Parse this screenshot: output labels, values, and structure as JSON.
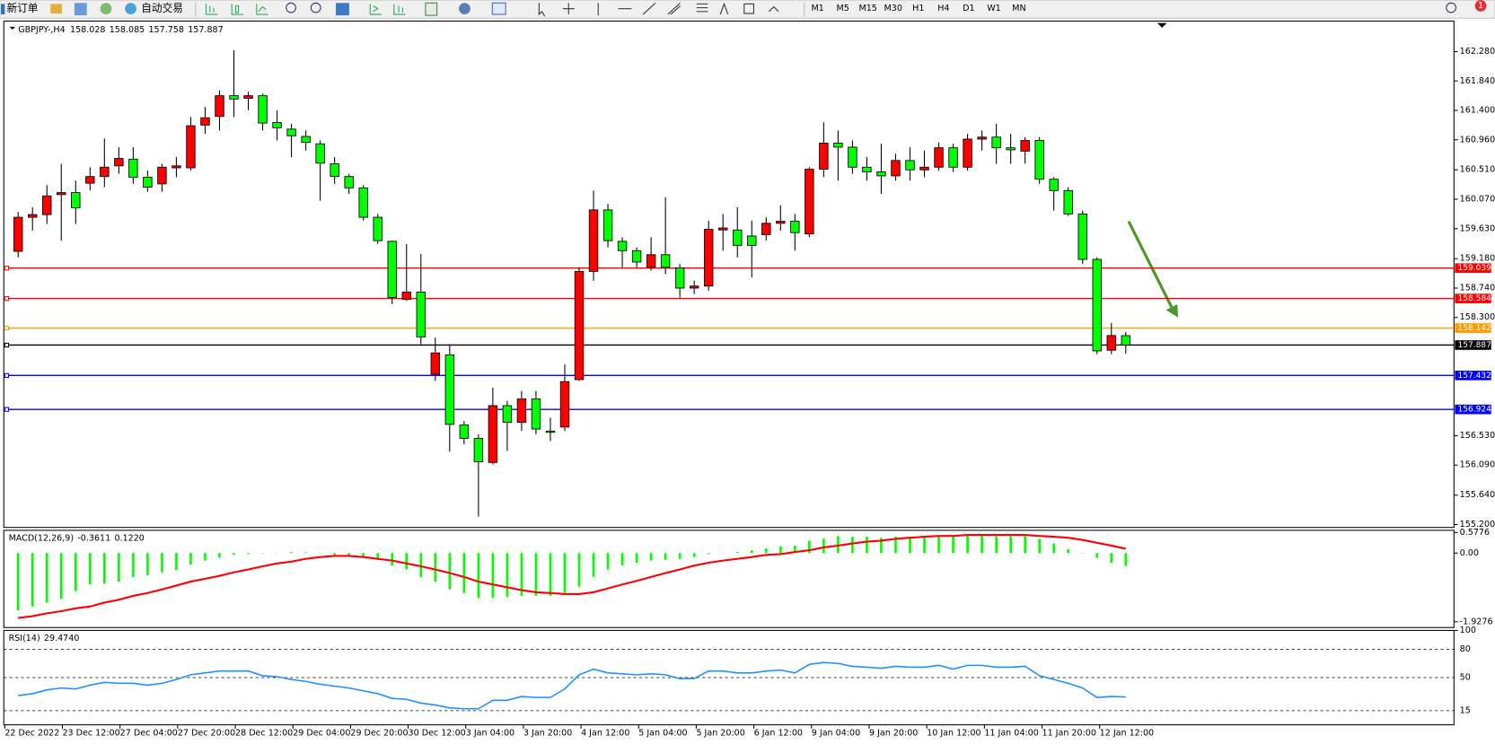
{
  "toolbar": {
    "new_order": "新订单",
    "auto_trading": "自动交易",
    "timeframes": [
      "M1",
      "M5",
      "M15",
      "M30",
      "H1",
      "H4",
      "D1",
      "W1",
      "MN"
    ],
    "badge": "1"
  },
  "chart_data": {
    "type": "candlestick",
    "symbol": "GBPJPY-,H4",
    "bull_color": "#ff0000",
    "bear_color": "#00ff00",
    "ohlc": [
      [
        159.29,
        159.88,
        159.2,
        159.8
      ],
      [
        159.8,
        159.95,
        159.6,
        159.84
      ],
      [
        159.84,
        160.28,
        159.7,
        160.12
      ],
      [
        160.14,
        160.6,
        159.45,
        160.17
      ],
      [
        160.17,
        160.35,
        159.7,
        159.94
      ],
      [
        160.31,
        160.55,
        160.2,
        160.41
      ],
      [
        160.41,
        160.98,
        160.25,
        160.55
      ],
      [
        160.57,
        160.85,
        160.45,
        160.68
      ],
      [
        160.67,
        160.85,
        160.3,
        160.4
      ],
      [
        160.4,
        160.5,
        160.18,
        160.25
      ],
      [
        160.3,
        160.6,
        160.18,
        160.55
      ],
      [
        160.54,
        160.7,
        160.4,
        160.57
      ],
      [
        160.54,
        161.3,
        160.5,
        161.17
      ],
      [
        161.18,
        161.45,
        161.05,
        161.29
      ],
      [
        161.31,
        161.7,
        161.1,
        161.62
      ],
      [
        161.62,
        162.3,
        161.3,
        161.57
      ],
      [
        161.58,
        161.68,
        161.4,
        161.62
      ],
      [
        161.62,
        161.65,
        161.1,
        161.21
      ],
      [
        161.22,
        161.4,
        160.95,
        161.14
      ],
      [
        161.12,
        161.2,
        160.7,
        161.02
      ],
      [
        161.01,
        161.1,
        160.8,
        160.92
      ],
      [
        160.9,
        160.95,
        160.05,
        160.61
      ],
      [
        160.6,
        160.7,
        160.3,
        160.41
      ],
      [
        160.41,
        160.45,
        160.15,
        160.24
      ],
      [
        160.24,
        160.28,
        159.75,
        159.8
      ],
      [
        159.8,
        159.85,
        159.4,
        159.45
      ],
      [
        159.44,
        159.45,
        158.5,
        158.6
      ],
      [
        158.57,
        159.4,
        158.55,
        158.68
      ],
      [
        158.68,
        159.25,
        157.9,
        158.01
      ],
      [
        157.45,
        158.0,
        157.35,
        157.77
      ],
      [
        157.74,
        157.9,
        156.29,
        156.7
      ],
      [
        156.69,
        156.75,
        156.4,
        156.49
      ],
      [
        156.49,
        156.55,
        155.32,
        156.14
      ],
      [
        156.13,
        157.25,
        156.1,
        156.98
      ],
      [
        156.98,
        157.05,
        156.3,
        156.73
      ],
      [
        156.73,
        157.2,
        156.6,
        157.08
      ],
      [
        157.08,
        157.2,
        156.55,
        156.63
      ],
      [
        156.6,
        156.8,
        156.45,
        156.58
      ],
      [
        156.66,
        157.6,
        156.6,
        157.34
      ],
      [
        157.37,
        159.05,
        157.35,
        158.99
      ],
      [
        158.99,
        160.2,
        158.85,
        159.91
      ],
      [
        159.91,
        160.0,
        159.35,
        159.45
      ],
      [
        159.44,
        159.5,
        159.05,
        159.3
      ],
      [
        159.3,
        159.35,
        159.05,
        159.13
      ],
      [
        159.05,
        159.5,
        159.0,
        159.24
      ],
      [
        159.24,
        160.1,
        158.95,
        159.05
      ],
      [
        159.04,
        159.1,
        158.6,
        158.74
      ],
      [
        158.74,
        158.85,
        158.65,
        158.77
      ],
      [
        158.77,
        159.75,
        158.7,
        159.62
      ],
      [
        159.61,
        159.85,
        159.3,
        159.64
      ],
      [
        159.61,
        159.95,
        159.2,
        159.38
      ],
      [
        159.52,
        159.75,
        158.9,
        159.38
      ],
      [
        159.54,
        159.8,
        159.45,
        159.71
      ],
      [
        159.71,
        159.98,
        159.6,
        159.74
      ],
      [
        159.74,
        159.85,
        159.3,
        159.57
      ],
      [
        159.55,
        160.55,
        159.5,
        160.52
      ],
      [
        160.52,
        161.22,
        160.4,
        160.91
      ],
      [
        160.91,
        161.1,
        160.35,
        160.85
      ],
      [
        160.85,
        160.95,
        160.45,
        160.55
      ],
      [
        160.55,
        160.7,
        160.35,
        160.48
      ],
      [
        160.48,
        160.9,
        160.15,
        160.42
      ],
      [
        160.42,
        160.75,
        160.35,
        160.65
      ],
      [
        160.65,
        160.85,
        160.35,
        160.51
      ],
      [
        160.51,
        160.8,
        160.4,
        160.55
      ],
      [
        160.55,
        160.92,
        160.5,
        160.84
      ],
      [
        160.84,
        160.9,
        160.48,
        160.55
      ],
      [
        160.55,
        161.05,
        160.5,
        160.97
      ],
      [
        160.97,
        161.1,
        160.8,
        161.0
      ],
      [
        161.0,
        161.2,
        160.6,
        160.84
      ],
      [
        160.84,
        161.05,
        160.6,
        160.81
      ],
      [
        160.79,
        161.0,
        160.6,
        160.95
      ],
      [
        160.95,
        161.0,
        160.3,
        160.37
      ],
      [
        160.37,
        160.4,
        159.9,
        160.2
      ],
      [
        160.2,
        160.25,
        159.82,
        159.85
      ],
      [
        159.85,
        159.9,
        159.1,
        159.17
      ],
      [
        159.17,
        159.2,
        157.75,
        157.8
      ],
      [
        157.81,
        158.22,
        157.75,
        158.03
      ],
      [
        158.028,
        158.085,
        157.758,
        157.887
      ]
    ],
    "ylim": [
      155.157,
      162.737
    ],
    "yticks": [
      {
        "value": 162.28,
        "label": "162.280"
      },
      {
        "value": 161.84,
        "label": "161.840"
      },
      {
        "value": 161.4,
        "label": "161.400"
      },
      {
        "value": 160.96,
        "label": "160.960"
      },
      {
        "value": 160.51,
        "label": "160.510"
      },
      {
        "value": 160.07,
        "label": "160.070"
      },
      {
        "value": 159.63,
        "label": "159.630"
      },
      {
        "value": 159.18,
        "label": "159.180"
      },
      {
        "value": 158.74,
        "label": "158.740"
      },
      {
        "value": 158.3,
        "label": "158.300"
      },
      {
        "value": 156.53,
        "label": "156.530"
      },
      {
        "value": 156.09,
        "label": "156.090"
      },
      {
        "value": 155.64,
        "label": "155.640"
      },
      {
        "value": 155.2,
        "label": "155.200"
      }
    ],
    "levels": [
      {
        "value": 159.039,
        "color": "#ff0000"
      },
      {
        "value": 158.584,
        "color": "#ff0000"
      },
      {
        "value": 158.142,
        "color": "#ff9900"
      },
      {
        "value": 157.887,
        "color": "#000000"
      },
      {
        "value": 157.432,
        "color": "#0000ff"
      },
      {
        "value": 156.924,
        "color": "#0000ff"
      }
    ],
    "x_labels": [
      "22 Dec 2022",
      "23 Dec 12:00",
      "27 Dec 04:00",
      "27 Dec 20:00",
      "28 Dec 12:00",
      "29 Dec 04:00",
      "29 Dec 20:00",
      "30 Dec 12:00",
      "3 Jan 04:00",
      "3 Jan 20:00",
      "4 Jan 12:00",
      "5 Jan 04:00",
      "5 Jan 20:00",
      "6 Jan 12:00",
      "9 Jan 04:00",
      "9 Jan 20:00",
      "10 Jan 12:00",
      "11 Jan 04:00",
      "11 Jan 20:00",
      "12 Jan 12:00"
    ],
    "macd": {
      "name": "MACD(12,26,9)",
      "readout": [
        "-0.3611",
        "0.1220"
      ],
      "histogram": [
        -1.61,
        -1.5,
        -1.39,
        -1.29,
        -1.07,
        -0.88,
        -0.86,
        -0.8,
        -0.67,
        -0.62,
        -0.54,
        -0.48,
        -0.32,
        -0.21,
        -0.13,
        -0.05,
        -0.03,
        -0.01,
        0.01,
        0.03,
        0.02,
        -0.01,
        -0.05,
        -0.08,
        -0.13,
        -0.19,
        -0.35,
        -0.46,
        -0.67,
        -0.8,
        -1.02,
        -1.12,
        -1.26,
        -1.26,
        -1.23,
        -1.2,
        -1.2,
        -1.2,
        -1.12,
        -0.94,
        -0.67,
        -0.46,
        -0.35,
        -0.27,
        -0.21,
        -0.19,
        -0.16,
        -0.11,
        -0.03,
        0.01,
        0.03,
        0.08,
        0.13,
        0.19,
        0.21,
        0.35,
        0.4,
        0.48,
        0.46,
        0.46,
        0.43,
        0.46,
        0.46,
        0.48,
        0.48,
        0.48,
        0.51,
        0.51,
        0.48,
        0.48,
        0.48,
        0.4,
        0.27,
        0.11,
        -0.01,
        -0.13,
        -0.27,
        -0.3611
      ],
      "histogram_color": "#00ff00",
      "signal": [
        -1.82,
        -1.77,
        -1.69,
        -1.63,
        -1.55,
        -1.5,
        -1.39,
        -1.31,
        -1.2,
        -1.12,
        -1.02,
        -0.91,
        -0.8,
        -0.72,
        -0.64,
        -0.54,
        -0.46,
        -0.37,
        -0.29,
        -0.24,
        -0.16,
        -0.11,
        -0.08,
        -0.08,
        -0.11,
        -0.16,
        -0.21,
        -0.29,
        -0.37,
        -0.46,
        -0.56,
        -0.67,
        -0.8,
        -0.88,
        -0.96,
        -1.04,
        -1.1,
        -1.12,
        -1.15,
        -1.15,
        -1.1,
        -0.99,
        -0.88,
        -0.78,
        -0.67,
        -0.56,
        -0.46,
        -0.35,
        -0.27,
        -0.21,
        -0.16,
        -0.11,
        -0.05,
        -0.03,
        0.03,
        0.08,
        0.16,
        0.21,
        0.27,
        0.32,
        0.35,
        0.4,
        0.43,
        0.46,
        0.48,
        0.48,
        0.51,
        0.51,
        0.51,
        0.51,
        0.51,
        0.48,
        0.46,
        0.43,
        0.37,
        0.29,
        0.21,
        0.122
      ],
      "signal_color": "#ff0000",
      "ylim": [
        -2.09,
        0.64
      ],
      "yticks": [
        0.5776,
        {
          "value": 0,
          "label": "0.00"
        },
        -1.9276
      ]
    },
    "rsi": {
      "name": "RSI(14)",
      "readout": "29.4740",
      "values": [
        31,
        33,
        37,
        39,
        38,
        42,
        45,
        44,
        44,
        42,
        44,
        48,
        53,
        55,
        57,
        57,
        57,
        52,
        51,
        48,
        46,
        43,
        41,
        39,
        36,
        33,
        28,
        27,
        23,
        21,
        18,
        17,
        17,
        26,
        26,
        30,
        29,
        29,
        38,
        53,
        59,
        55,
        54,
        53,
        54,
        53,
        49,
        49,
        57,
        57,
        55,
        55,
        57,
        58,
        55,
        64,
        66,
        65,
        62,
        61,
        60,
        62,
        61,
        61,
        63,
        59,
        63,
        63,
        61,
        61,
        62,
        52,
        48,
        44,
        39,
        29,
        30,
        29.474
      ],
      "color": "#1e90ff",
      "ylim": [
        0,
        100
      ],
      "yticks": [
        100,
        80,
        50,
        15
      ]
    }
  }
}
